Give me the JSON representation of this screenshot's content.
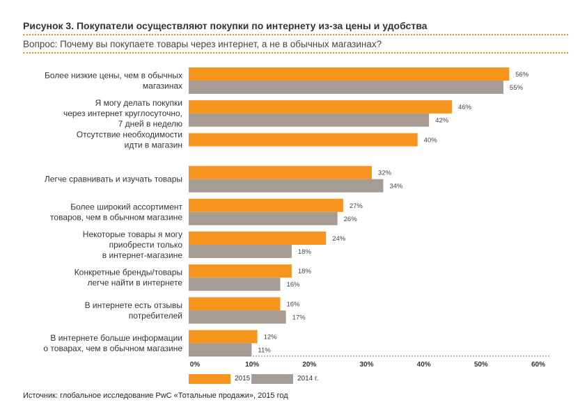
{
  "header": {
    "title": "Рисунок 3. Покупатели осуществляют покупки по интернету из-за цены и удобства",
    "question": "Вопрос: Почему вы покупаете товары через интернет, а не в обычных магазинах?"
  },
  "footer": {
    "source": "Источник: глобальное исследование PwC «Тотальные продажи», 2015 год"
  },
  "colors": {
    "series_2015": "#f7941d",
    "series_2014": "#a69c94",
    "accent": "#f08c1e"
  },
  "chart_data": {
    "type": "bar",
    "orientation": "horizontal",
    "title": "",
    "xlabel": "",
    "ylabel": "",
    "xlim": [
      0,
      60
    ],
    "x_ticks": [
      "0%",
      "10%",
      "20%",
      "30%",
      "40%",
      "50%",
      "60%"
    ],
    "grid": false,
    "legend_position": "bottom-left",
    "categories": [
      [
        "Более низкие цены, чем в обычных",
        "магазинах"
      ],
      [
        "Я могу делать покупки",
        "через интернет круглосуточно,",
        "7 дней в неделю"
      ],
      [
        "Отсутствие необходимости",
        "идти в магазин"
      ],
      [
        "Легче сравнивать и изучать товары"
      ],
      [
        "Более широкий ассортимент",
        "товаров, чем в обычном магазине"
      ],
      [
        "Некоторые товары я могу",
        "приобрести только",
        "в интернет-магазине"
      ],
      [
        "Конкретные бренды/товары",
        "легче найти в интернете"
      ],
      [
        "В интернете есть отзывы",
        "потребителей"
      ],
      [
        "В интернете больше информации",
        "о товарах, чем в обычном магазине"
      ]
    ],
    "series": [
      {
        "name": "2015 г.",
        "values": [
          56,
          46,
          40,
          32,
          27,
          24,
          18,
          16,
          12
        ],
        "labels": [
          "56%",
          "46%",
          "40%",
          "32%",
          "27%",
          "24%",
          "18%",
          "16%",
          "12%"
        ]
      },
      {
        "name": "2014 г.",
        "values": [
          55,
          42,
          null,
          34,
          26,
          18,
          16,
          17,
          11
        ],
        "labels": [
          "55%",
          "42%",
          null,
          "34%",
          "26%",
          "18%",
          "16%",
          "17%",
          "11%"
        ]
      }
    ]
  }
}
